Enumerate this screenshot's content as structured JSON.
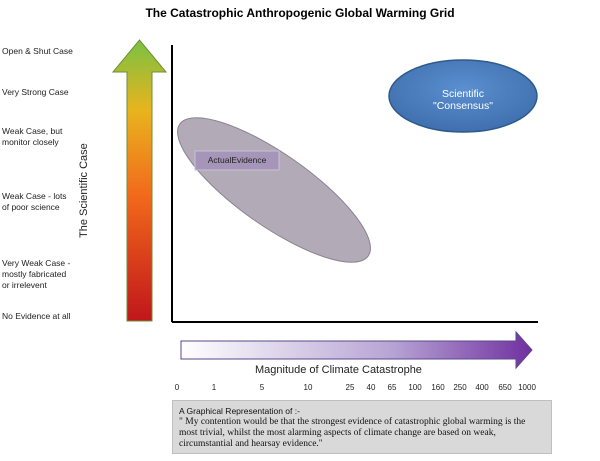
{
  "title": "The Catastrophic Anthropogenic Global Warming Grid",
  "y_levels": [
    "Open & Shut Case",
    "Very Strong Case",
    "Weak Case, but monitor closely",
    "Weak Case - lots of poor science",
    "Very Weak Case - mostly fabricated or irrelevent",
    "No Evidence at all"
  ],
  "y_axis_label": "The Scientific Case",
  "x_axis_label": "Magnitude of Climate Catastrophe",
  "x_ticks": [
    "0",
    "1",
    "5",
    "10",
    "25",
    "40",
    "65",
    "100",
    "160",
    "250",
    "400",
    "650",
    "1000"
  ],
  "bubbles": {
    "scientific_consensus": {
      "line1": "Scientific",
      "line2": "\"Consensus\"",
      "fill": "#4f81bd"
    },
    "actual_evidence": {
      "label": "ActualEvidence",
      "fill": "#b3aab7"
    }
  },
  "caption": {
    "title": "A Graphical Representation of :-",
    "quote": "\" My contention would be that the strongest evidence of catastrophic global warming is the most trivial, whilst the most alarming aspects of climate change are based on weak, circumstantial and hearsay evidence.\""
  },
  "colors": {
    "arrow_top": "#7ac143",
    "arrow_mid": "#f4a31b",
    "arrow_bottom": "#c0161b",
    "x_arrow_start": "#ffffff",
    "x_arrow_end": "#7030a0"
  }
}
